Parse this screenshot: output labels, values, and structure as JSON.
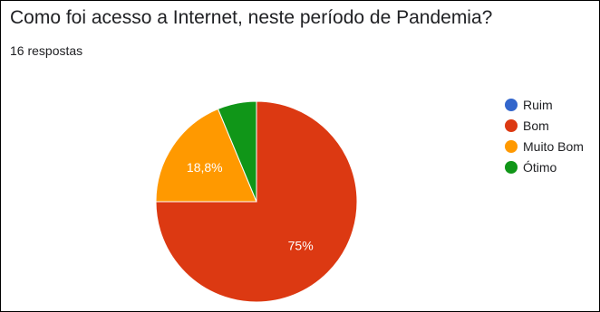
{
  "header": {
    "title": "Como foi acesso a Internet, neste período de Pandemia?",
    "subtitle": "16 respostas"
  },
  "chart_data": {
    "type": "pie",
    "title": "Como foi acesso a Internet, neste período de Pandemia?",
    "categories": [
      "Ruim",
      "Bom",
      "Muito Bom",
      "Ótimo"
    ],
    "values": [
      0,
      12,
      3,
      1
    ],
    "slice_labels": [
      "",
      "75%",
      "18,8%",
      ""
    ],
    "colors": [
      "#3366cc",
      "#dc3912",
      "#ff9900",
      "#109618"
    ],
    "legend_position": "right"
  }
}
